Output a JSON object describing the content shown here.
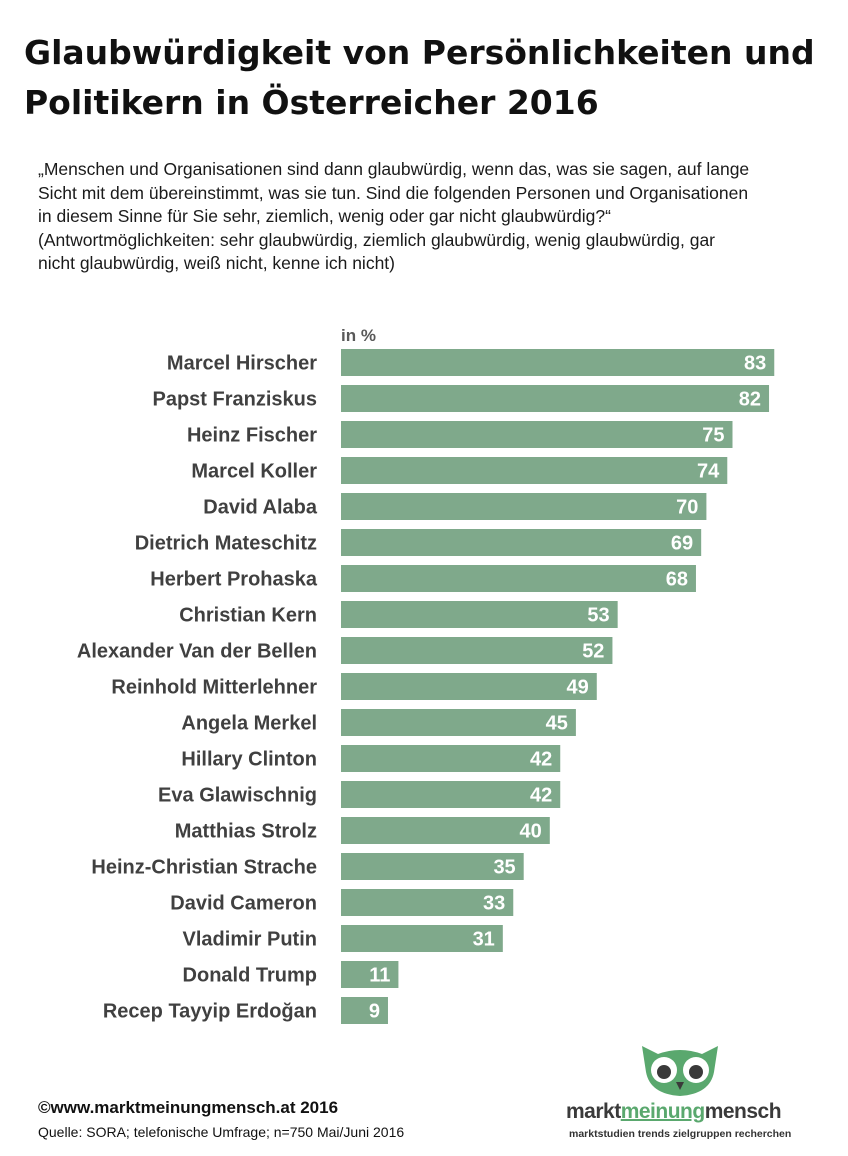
{
  "title_line1": "Glaubwürdigkeit von Persönlichkeiten und",
  "title_line2": "Politikern in Österreicher 2016",
  "question": {
    "line1": "„Menschen und Organisationen sind dann glaubwürdig, wenn das, was sie sagen, auf lange",
    "line2": "Sicht mit dem übereinstimmt, was sie tun. Sind die folgenden Personen und Organisationen",
    "line3": "in diesem Sinne für Sie sehr,  ziemlich, wenig oder gar nicht glaubwürdig?“",
    "line4": "(Antwortmöglichkeiten: sehr glaubwürdig, ziemlich glaubwürdig, wenig glaubwürdig, gar",
    "line5": "nicht  glaubwürdig, weiß nicht, kenne ich nicht)"
  },
  "chart_data": {
    "type": "bar",
    "orientation": "horizontal",
    "unit_label": "in %",
    "categories": [
      "Marcel Hirscher",
      "Papst Franziskus",
      "Heinz Fischer",
      "Marcel Koller",
      "David Alaba",
      "Dietrich Mateschitz",
      "Herbert Prohaska",
      "Christian Kern",
      "Alexander Van der Bellen",
      "Reinhold Mitterlehner",
      "Angela Merkel",
      "Hillary Clinton",
      "Eva Glawischnig",
      "Matthias Strolz",
      "Heinz-Christian Strache",
      "David Cameron",
      "Vladimir Putin",
      "Donald Trump",
      "Recep Tayyip Erdoğan"
    ],
    "values": [
      83,
      82,
      75,
      74,
      70,
      69,
      68,
      53,
      52,
      49,
      45,
      42,
      42,
      40,
      35,
      33,
      31,
      11,
      9
    ],
    "xlim": [
      0,
      100
    ],
    "bar_color": "#7fa98b",
    "grid": false,
    "legend": "none"
  },
  "footer": {
    "copyright": "©www.marktmeinungmensch.at 2016",
    "source": "Quelle: SORA; telefonische Umfrage; n=750 Mai/Juni 2016"
  },
  "logo": {
    "word1": "markt",
    "word2": "meinung",
    "word3": "mensch",
    "tagline": "marktstudien trends zielgruppen recherchen",
    "icon": "owl-icon",
    "accent_color": "#5aa86e"
  }
}
